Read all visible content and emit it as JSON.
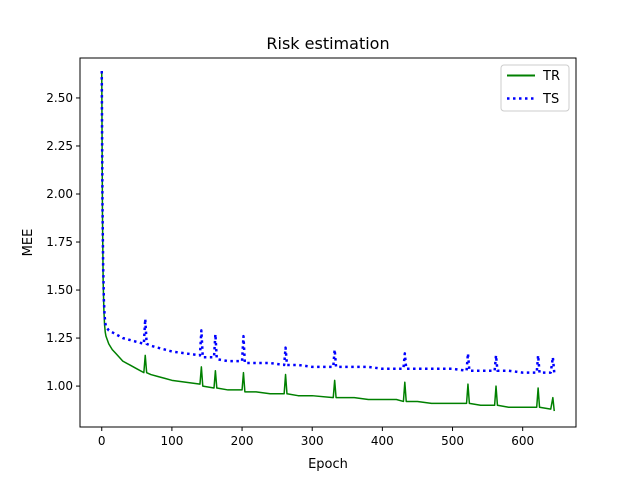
{
  "chart_data": {
    "type": "line",
    "title": "Risk estimation",
    "xlabel": "Epoch",
    "ylabel": "MEE",
    "xlim": [
      -31,
      676
    ],
    "ylim": [
      0.787,
      2.708
    ],
    "xticks": [
      0,
      100,
      200,
      300,
      400,
      500,
      600
    ],
    "yticks": [
      1.0,
      1.25,
      1.5,
      1.75,
      2.0,
      2.25,
      2.5
    ],
    "grid": false,
    "legend_position": "top-right",
    "series": [
      {
        "name": "TR",
        "color": "#008000",
        "linestyle": "solid",
        "x": [
          0,
          1,
          2,
          3,
          4,
          5,
          6,
          8,
          10,
          15,
          20,
          25,
          30,
          40,
          50,
          60,
          62,
          64,
          70,
          80,
          90,
          100,
          120,
          140,
          142,
          144,
          160,
          162,
          164,
          180,
          200,
          202,
          204,
          220,
          240,
          260,
          262,
          264,
          280,
          300,
          330,
          332,
          334,
          360,
          380,
          400,
          420,
          430,
          432,
          434,
          450,
          470,
          500,
          520,
          522,
          524,
          540,
          560,
          562,
          564,
          580,
          600,
          620,
          622,
          624,
          640,
          643,
          645
        ],
        "y": [
          2.64,
          1.9,
          1.55,
          1.4,
          1.32,
          1.28,
          1.26,
          1.24,
          1.22,
          1.19,
          1.17,
          1.15,
          1.13,
          1.11,
          1.09,
          1.07,
          1.16,
          1.07,
          1.06,
          1.05,
          1.04,
          1.03,
          1.02,
          1.01,
          1.1,
          1.0,
          0.99,
          1.08,
          0.99,
          0.98,
          0.98,
          1.07,
          0.97,
          0.97,
          0.96,
          0.96,
          1.06,
          0.96,
          0.95,
          0.95,
          0.94,
          1.03,
          0.94,
          0.94,
          0.93,
          0.93,
          0.93,
          0.92,
          1.02,
          0.92,
          0.92,
          0.91,
          0.91,
          0.91,
          1.01,
          0.91,
          0.9,
          0.9,
          1.0,
          0.9,
          0.89,
          0.89,
          0.89,
          0.99,
          0.89,
          0.88,
          0.94,
          0.87
        ]
      },
      {
        "name": "TS",
        "color": "#0000ff",
        "linestyle": "dotted",
        "x": [
          0,
          1,
          2,
          3,
          4,
          5,
          6,
          8,
          10,
          15,
          20,
          25,
          30,
          40,
          50,
          60,
          62,
          64,
          70,
          80,
          90,
          100,
          120,
          140,
          142,
          144,
          160,
          162,
          164,
          180,
          200,
          202,
          204,
          220,
          240,
          260,
          262,
          264,
          280,
          300,
          330,
          332,
          334,
          360,
          380,
          400,
          420,
          430,
          432,
          434,
          450,
          470,
          500,
          520,
          522,
          524,
          540,
          560,
          562,
          564,
          580,
          600,
          620,
          622,
          624,
          640,
          643,
          645
        ],
        "y": [
          2.64,
          1.95,
          1.62,
          1.45,
          1.37,
          1.33,
          1.31,
          1.3,
          1.29,
          1.28,
          1.27,
          1.26,
          1.25,
          1.24,
          1.23,
          1.22,
          1.35,
          1.22,
          1.21,
          1.2,
          1.19,
          1.18,
          1.17,
          1.16,
          1.29,
          1.15,
          1.15,
          1.27,
          1.14,
          1.13,
          1.13,
          1.26,
          1.12,
          1.12,
          1.12,
          1.11,
          1.2,
          1.11,
          1.11,
          1.1,
          1.1,
          1.19,
          1.1,
          1.1,
          1.1,
          1.09,
          1.09,
          1.09,
          1.17,
          1.09,
          1.09,
          1.09,
          1.09,
          1.08,
          1.17,
          1.08,
          1.08,
          1.08,
          1.16,
          1.08,
          1.08,
          1.07,
          1.07,
          1.16,
          1.07,
          1.07,
          1.15,
          1.07
        ]
      }
    ]
  }
}
